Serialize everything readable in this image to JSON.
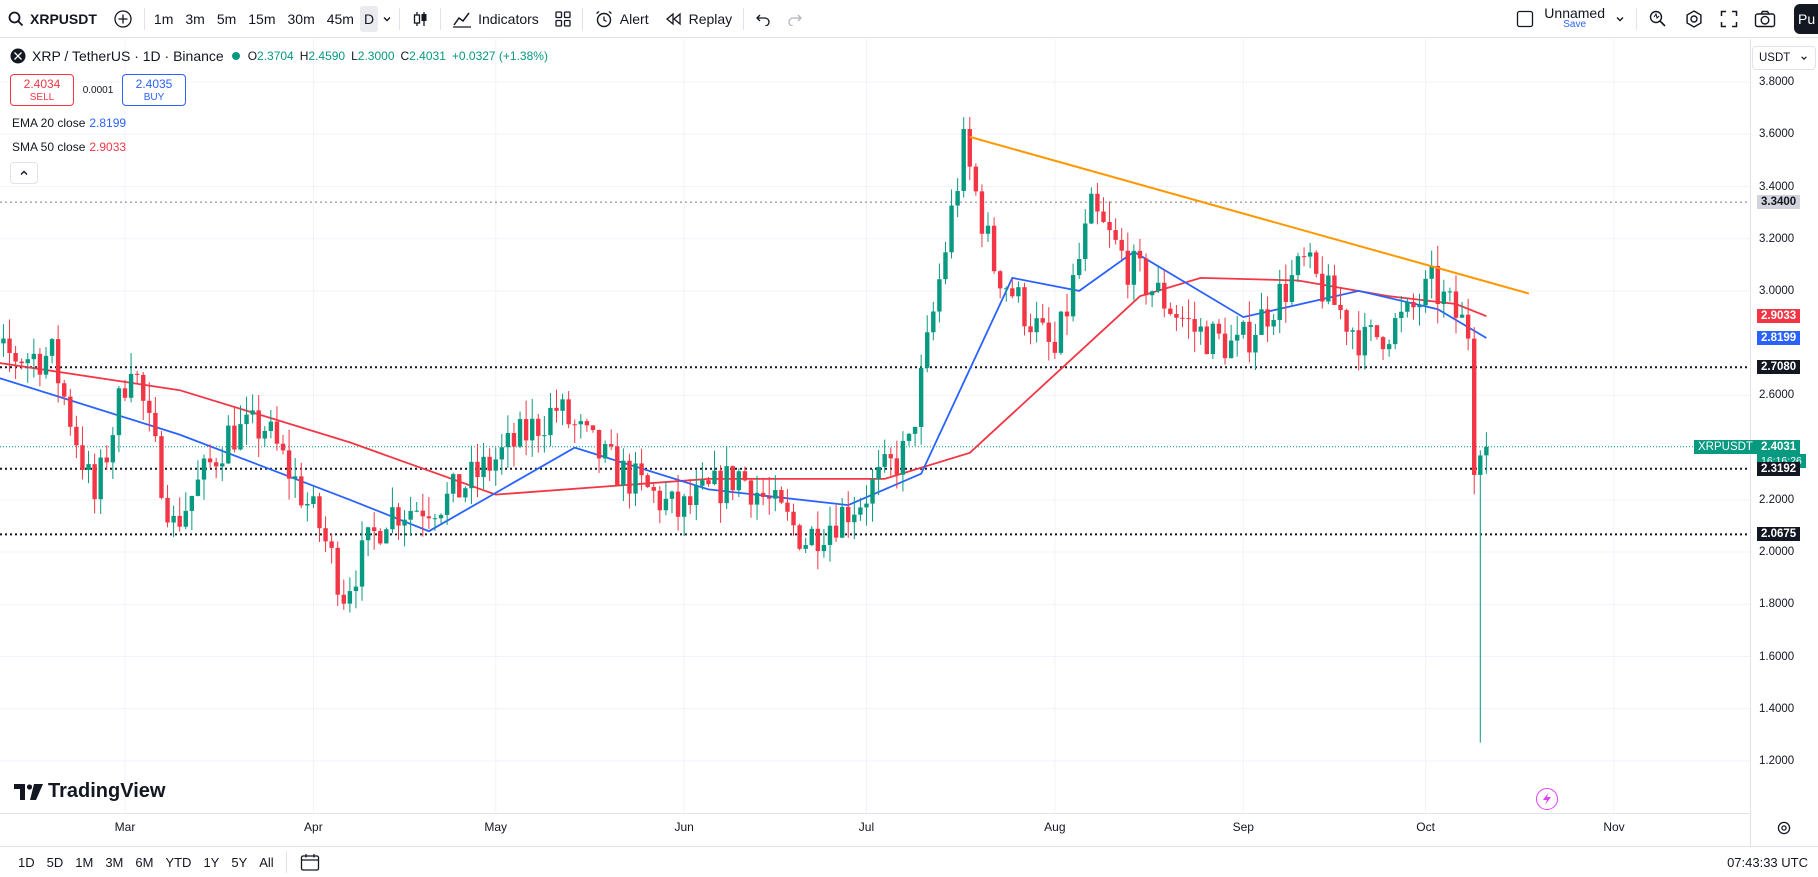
{
  "toolbar": {
    "symbol": "XRPUSDT",
    "intervals": [
      "1m",
      "3m",
      "5m",
      "15m",
      "30m",
      "45m",
      "D"
    ],
    "active_interval": "D",
    "indicators_label": "Indicators",
    "alert_label": "Alert",
    "replay_label": "Replay",
    "layout_name": "Unnamed",
    "layout_save": "Save",
    "publish_label": "Pu"
  },
  "legend": {
    "title": "XRP / TetherUS · 1D · Binance",
    "open_label": "O",
    "open": "2.3704",
    "high_label": "H",
    "high": "2.4590",
    "low_label": "L",
    "low": "2.3000",
    "close_label": "C",
    "close": "2.4031",
    "change": "+0.0327 (+1.38%)",
    "sell_price": "2.4034",
    "sell_label": "SELL",
    "spread": "0.0001",
    "buy_price": "2.4035",
    "buy_label": "BUY",
    "ema_label": "EMA 20 close",
    "ema_value": "2.8199",
    "sma_label": "SMA 50 close",
    "sma_value": "2.9033"
  },
  "price_axis": {
    "currency": "USDT",
    "ticks": [
      "3.8000",
      "3.6000",
      "3.4000",
      "3.2000",
      "3.0000",
      "2.6000",
      "2.2000",
      "2.0000",
      "1.8000",
      "1.6000",
      "1.4000",
      "1.2000"
    ],
    "tags": [
      {
        "text": "3.3400",
        "kind": "level-grey"
      },
      {
        "text": "2.9033",
        "kind": "sma"
      },
      {
        "text": "2.8199",
        "kind": "ema"
      },
      {
        "text": "2.7080",
        "kind": "level"
      },
      {
        "text": "2.4031",
        "kind": "last"
      },
      {
        "text": "16:16:26",
        "kind": "countdown"
      },
      {
        "text": "2.3192",
        "kind": "level"
      },
      {
        "text": "2.0675",
        "kind": "level"
      }
    ],
    "symbol_tag": "XRPUSDT"
  },
  "time_axis": {
    "labels": [
      "Mar",
      "Apr",
      "May",
      "Jun",
      "Jul",
      "Aug",
      "Sep",
      "Oct",
      "Nov"
    ]
  },
  "bottom": {
    "ranges": [
      "1D",
      "5D",
      "1M",
      "3M",
      "6M",
      "YTD",
      "1Y",
      "5Y",
      "All"
    ],
    "clock": "07:43:33 UTC"
  },
  "branding": "TradingView",
  "colors": {
    "up": "#089981",
    "down": "#f23645",
    "ema": "#2962ff",
    "sma": "#f23645",
    "trendline": "#ff9800",
    "level": "#131722"
  },
  "chart_data": {
    "type": "candlestick",
    "symbol": "XRPUSDT",
    "y_range": [
      1.15,
      3.85
    ],
    "horizontal_levels": [
      3.34,
      2.708,
      2.3192,
      2.0675
    ],
    "trendline": {
      "start": [
        "2025-07-18",
        3.59
      ],
      "end": [
        "2025-10-18",
        2.99
      ]
    },
    "ohlc_path": [
      [
        "2025-02-01",
        2.75
      ],
      [
        "2025-02-18",
        2.75
      ],
      [
        "2025-02-25",
        2.2
      ],
      [
        "2025-03-03",
        2.75
      ],
      [
        "2025-03-10",
        2.1
      ],
      [
        "2025-03-19",
        2.45
      ],
      [
        "2025-03-25",
        2.48
      ],
      [
        "2025-04-03",
        2.1
      ],
      [
        "2025-04-07",
        1.85
      ],
      [
        "2025-04-14",
        2.15
      ],
      [
        "2025-04-24",
        2.2
      ],
      [
        "2025-05-12",
        2.55
      ],
      [
        "2025-05-20",
        2.35
      ],
      [
        "2025-06-01",
        2.15
      ],
      [
        "2025-06-11",
        2.3
      ],
      [
        "2025-06-22",
        2.05
      ],
      [
        "2025-07-01",
        2.2
      ],
      [
        "2025-07-09",
        2.4
      ],
      [
        "2025-07-18",
        3.55
      ],
      [
        "2025-07-23",
        3.1
      ],
      [
        "2025-08-02",
        2.75
      ],
      [
        "2025-08-08",
        3.3
      ],
      [
        "2025-08-14",
        3.1
      ],
      [
        "2025-08-25",
        2.85
      ],
      [
        "2025-09-01",
        2.78
      ],
      [
        "2025-09-12",
        3.1
      ],
      [
        "2025-09-22",
        2.8
      ],
      [
        "2025-09-29",
        2.9
      ],
      [
        "2025-10-03",
        3.02
      ],
      [
        "2025-10-09",
        2.85
      ],
      [
        "2025-10-10",
        2.37
      ],
      [
        "2025-10-11",
        2.4031
      ]
    ],
    "last_candle": {
      "date": "2025-10-11",
      "open": 2.3704,
      "high": 2.459,
      "low": 2.3,
      "close": 2.4031
    },
    "crash_candle_low": 1.27,
    "ema20_path": [
      [
        "2025-02-01",
        2.72
      ],
      [
        "2025-03-10",
        2.45
      ],
      [
        "2025-04-07",
        2.2
      ],
      [
        "2025-04-20",
        2.08
      ],
      [
        "2025-05-14",
        2.4
      ],
      [
        "2025-06-05",
        2.24
      ],
      [
        "2025-06-28",
        2.18
      ],
      [
        "2025-07-10",
        2.3
      ],
      [
        "2025-07-25",
        3.05
      ],
      [
        "2025-08-05",
        3.0
      ],
      [
        "2025-08-14",
        3.15
      ],
      [
        "2025-09-01",
        2.9
      ],
      [
        "2025-09-20",
        3.0
      ],
      [
        "2025-10-03",
        2.93
      ],
      [
        "2025-10-11",
        2.8199
      ]
    ],
    "sma50_path": [
      [
        "2025-02-01",
        2.75
      ],
      [
        "2025-03-10",
        2.62
      ],
      [
        "2025-04-07",
        2.42
      ],
      [
        "2025-05-01",
        2.22
      ],
      [
        "2025-06-05",
        2.28
      ],
      [
        "2025-07-04",
        2.28
      ],
      [
        "2025-07-18",
        2.38
      ],
      [
        "2025-08-15",
        2.98
      ],
      [
        "2025-08-25",
        3.05
      ],
      [
        "2025-09-10",
        3.04
      ],
      [
        "2025-09-25",
        2.98
      ],
      [
        "2025-10-06",
        2.95
      ],
      [
        "2025-10-11",
        2.9033
      ]
    ]
  }
}
